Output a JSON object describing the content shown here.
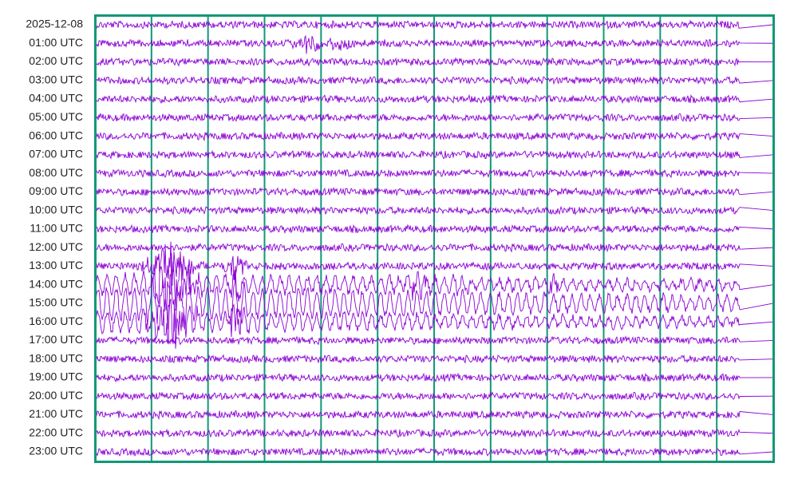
{
  "row_labels": [
    "2025-12-08",
    "01:00 UTC",
    "02:00 UTC",
    "03:00 UTC",
    "04:00 UTC",
    "05:00 UTC",
    "06:00 UTC",
    "07:00 UTC",
    "08:00 UTC",
    "09:00 UTC",
    "10:00 UTC",
    "11:00 UTC",
    "12:00 UTC",
    "13:00 UTC",
    "14:00 UTC",
    "15:00 UTC",
    "16:00 UTC",
    "17:00 UTC",
    "18:00 UTC",
    "19:00 UTC",
    "20:00 UTC",
    "21:00 UTC",
    "22:00 UTC",
    "23:00 UTC"
  ]
}
